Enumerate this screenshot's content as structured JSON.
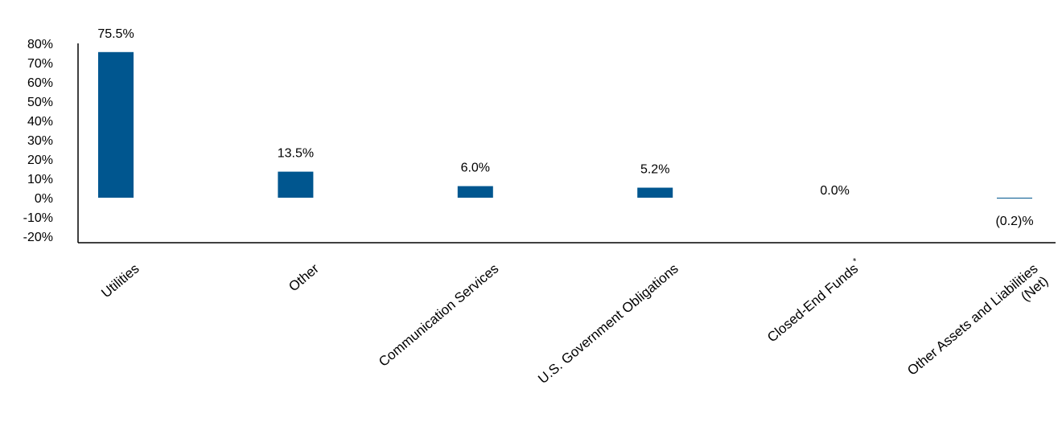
{
  "chart_data": {
    "type": "bar",
    "categories": [
      "Utilities",
      "Other",
      "Communication Services",
      "U.S. Government Obligations",
      "Closed-End Funds*",
      "Other Assets and Liabilities (Net)"
    ],
    "category_lines": [
      [
        "Utilities"
      ],
      [
        "Other"
      ],
      [
        "Communication Services"
      ],
      [
        "U.S. Government Obligations"
      ],
      [
        "Closed-End Funds",
        "*"
      ],
      [
        "Other Assets and Liabilities",
        "(Net)"
      ]
    ],
    "values": [
      75.5,
      13.5,
      6.0,
      5.2,
      0.0,
      -0.2
    ],
    "data_labels": [
      "75.5%",
      "13.5%",
      "6.0%",
      "5.2%",
      "0.0%",
      "(0.2)%"
    ],
    "yticks": [
      "80%",
      "70%",
      "60%",
      "50%",
      "40%",
      "30%",
      "20%",
      "10%",
      "0%",
      "-10%",
      "-20%"
    ],
    "ylim": [
      -20,
      80
    ],
    "bar_color": "#00568f",
    "grid": false,
    "legend": "none",
    "title": "",
    "xlabel": "",
    "ylabel": ""
  }
}
